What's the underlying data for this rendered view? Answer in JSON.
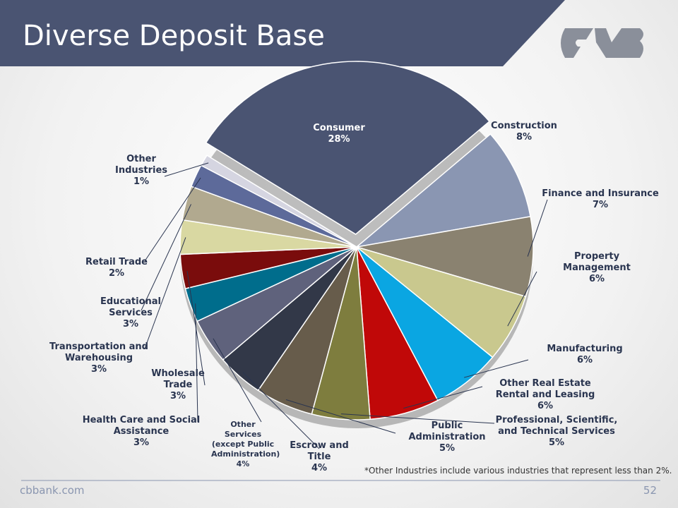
{
  "header": {
    "title": "Diverse Deposit Base"
  },
  "chart_data": {
    "type": "pie",
    "categories": [
      "Consumer",
      "Construction",
      "Finance and Insurance",
      "Property Management",
      "Manufacturing",
      "Other Real Estate Rental and Leasing",
      "Professional, Scientific, and Technical Services",
      "Public Administration",
      "Escrow and Title",
      "Other Services (except Public Administration)",
      "Health Care and Social Assistance",
      "Wholesale Trade",
      "Transportation and Warehousing",
      "Educational Services",
      "Retail Trade",
      "Other Industries"
    ],
    "values": [
      28,
      8,
      7,
      6,
      6,
      6,
      5,
      5,
      4,
      4,
      3,
      3,
      3,
      3,
      2,
      1
    ],
    "value_labels": [
      "28%",
      "8%",
      "7%",
      "6%",
      "6%",
      "6%",
      "5%",
      "5%",
      "4%",
      "4%",
      "3%",
      "3%",
      "3%",
      "3%",
      "2%",
      "1%"
    ],
    "colors": [
      "#4a5472",
      "#8a96b2",
      "#8a8270",
      "#c9c88e",
      "#0aa6e2",
      "#c00808",
      "#7e7d3e",
      "#675c4b",
      "#323848",
      "#5f627c",
      "#006d8c",
      "#7a0c0c",
      "#d9d8a2",
      "#b1a98f",
      "#5d6a9a",
      "#d5d5e1"
    ]
  },
  "footnote": "*Other Industries include various industries that represent less than 2%.",
  "footer": {
    "site": "cbbank.com",
    "page": "52"
  }
}
